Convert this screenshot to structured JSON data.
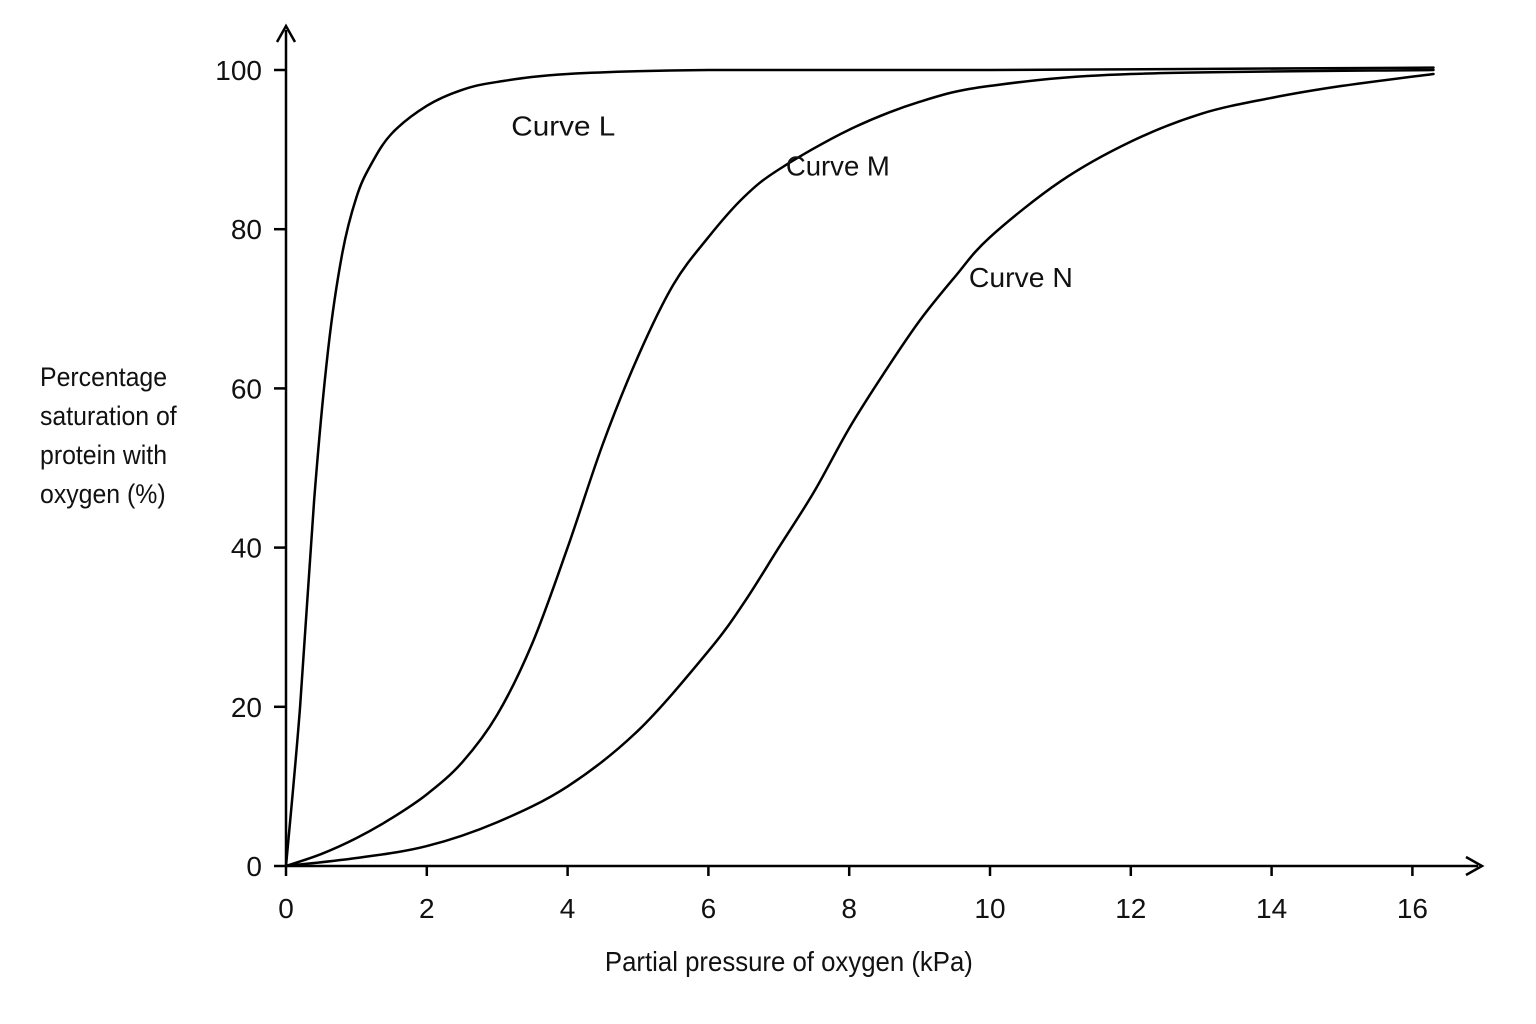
{
  "chart_data": {
    "type": "line",
    "title": "",
    "xlabel": "Partial pressure of oxygen (kPa)",
    "ylabel_lines": [
      "Percentage",
      "saturation of",
      "protein with",
      "oxygen (%)"
    ],
    "xlim": [
      0,
      16.3
    ],
    "ylim": [
      0,
      100
    ],
    "x_ticks": [
      0,
      2,
      4,
      6,
      8,
      10,
      12,
      14,
      16
    ],
    "y_ticks": [
      0,
      20,
      40,
      60,
      80,
      100
    ],
    "grid": false,
    "legend": "none",
    "line_color": "#000000",
    "series": [
      {
        "name": "Curve L",
        "x": [
          0,
          0.2,
          0.4,
          0.6,
          0.8,
          1.0,
          1.2,
          1.5,
          2.0,
          2.5,
          3.0,
          4.0,
          6.0,
          10.0,
          16.3
        ],
        "y": [
          0,
          20,
          46,
          65,
          77,
          84,
          88,
          92,
          95.5,
          97.5,
          98.5,
          99.5,
          100,
          100,
          100.3
        ]
      },
      {
        "name": "Curve M",
        "x": [
          0,
          0.5,
          1.0,
          1.5,
          2.0,
          2.5,
          3.0,
          3.5,
          4.0,
          4.5,
          5.0,
          5.5,
          6.0,
          6.5,
          7.0,
          8.0,
          9.0,
          10.0,
          12.0,
          16.3
        ],
        "y": [
          0,
          1.5,
          3.5,
          6,
          9,
          13,
          19,
          28,
          40,
          53,
          64,
          73,
          79,
          84,
          87.5,
          92.5,
          96,
          98,
          99.5,
          100
        ]
      },
      {
        "name": "Curve N",
        "x": [
          0,
          1,
          2,
          3,
          4,
          5,
          6,
          6.5,
          7,
          7.5,
          8,
          8.5,
          9,
          9.5,
          10,
          11,
          12,
          13,
          14,
          15,
          16.3
        ],
        "y": [
          0,
          1,
          2.5,
          5.5,
          10,
          17,
          27,
          33,
          40,
          47,
          55,
          62,
          68.5,
          74,
          79,
          86,
          91,
          94.5,
          96.5,
          98,
          99.5
        ]
      }
    ],
    "annotations": [
      {
        "text": "Curve L",
        "x": 3.2,
        "y": 93
      },
      {
        "text": "Curve M",
        "x": 7.1,
        "y": 88
      },
      {
        "text": "Curve N",
        "x": 9.7,
        "y": 74
      }
    ]
  }
}
